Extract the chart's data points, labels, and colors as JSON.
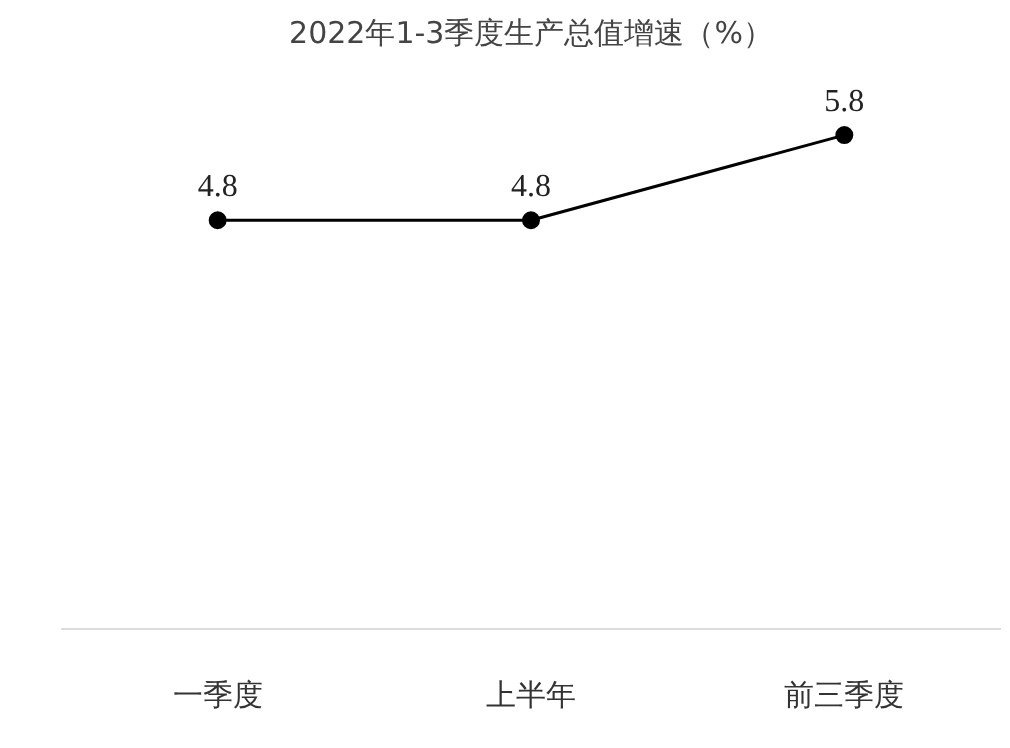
{
  "chart_data": {
    "type": "line",
    "title": "2022年1-3季度生产总值增速（%）",
    "categories": [
      "一季度",
      "上半年",
      "前三季度"
    ],
    "series": [
      {
        "color": "#000000",
        "values": [
          4.8,
          4.8,
          5.8
        ]
      }
    ],
    "data_labels": true,
    "marker": "circle",
    "line_style": "solid",
    "tick_labels": "x"
  }
}
